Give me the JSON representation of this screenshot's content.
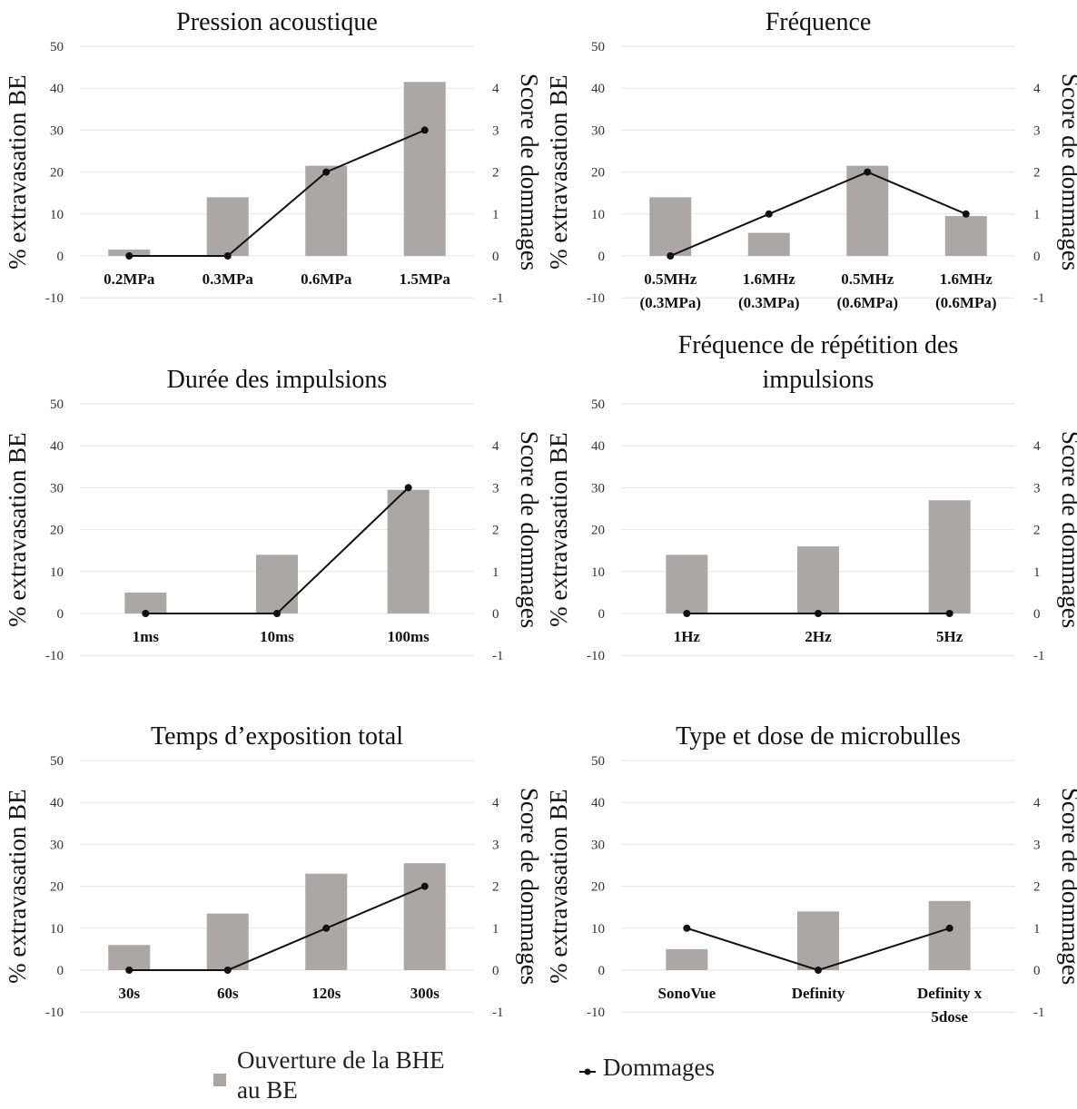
{
  "chart_data": [
    {
      "type": "bar",
      "title_lines": [
        "Pression acoustique"
      ],
      "ylabel": "% extravasation BE",
      "y2label": "Score de dommages",
      "ylim": [
        -10,
        50
      ],
      "yticks": [
        -10,
        0,
        10,
        20,
        30,
        40,
        50
      ],
      "y2lim": [
        -1,
        4
      ],
      "y2ticks": [
        -1,
        0,
        1,
        2,
        3,
        4
      ],
      "grid": true,
      "categories": [
        [
          "0.2MPa"
        ],
        [
          "0.3MPa"
        ],
        [
          "0.6MPa"
        ],
        [
          "1.5MPa"
        ]
      ],
      "series": [
        {
          "name": "Ouverture de la BHE au BE",
          "type": "bar",
          "axis": "left",
          "values": [
            1.5,
            14,
            21.5,
            41.5
          ]
        },
        {
          "name": "Dommages",
          "type": "line",
          "axis": "right",
          "values": [
            0,
            0,
            2,
            3
          ]
        }
      ]
    },
    {
      "type": "bar",
      "title_lines": [
        "Fréquence"
      ],
      "ylabel": "% extravasation BE",
      "y2label": "Score de dommages",
      "ylim": [
        -10,
        50
      ],
      "yticks": [
        -10,
        0,
        10,
        20,
        30,
        40,
        50
      ],
      "y2lim": [
        -1,
        4
      ],
      "y2ticks": [
        -1,
        0,
        1,
        2,
        3,
        4
      ],
      "grid": true,
      "categories": [
        [
          "0.5MHz",
          "(0.3MPa)"
        ],
        [
          "1.6MHz",
          "(0.3MPa)"
        ],
        [
          "0.5MHz",
          "(0.6MPa)"
        ],
        [
          "1.6MHz",
          "(0.6MPa)"
        ]
      ],
      "series": [
        {
          "name": "Ouverture de la BHE au BE",
          "type": "bar",
          "axis": "left",
          "values": [
            14,
            5.5,
            21.5,
            9.5
          ]
        },
        {
          "name": "Dommages",
          "type": "line",
          "axis": "right",
          "values": [
            0,
            1,
            2,
            1
          ]
        }
      ]
    },
    {
      "type": "bar",
      "title_lines": [
        "Durée des impulsions"
      ],
      "ylabel": "% extravasation BE",
      "y2label": "Score de dommages",
      "ylim": [
        -10,
        50
      ],
      "yticks": [
        -10,
        0,
        10,
        20,
        30,
        40,
        50
      ],
      "y2lim": [
        -1,
        4
      ],
      "y2ticks": [
        -1,
        0,
        1,
        2,
        3,
        4
      ],
      "grid": true,
      "categories": [
        [
          "1ms"
        ],
        [
          "10ms"
        ],
        [
          "100ms"
        ]
      ],
      "series": [
        {
          "name": "Ouverture de la BHE au BE",
          "type": "bar",
          "axis": "left",
          "values": [
            5,
            14,
            29.5
          ]
        },
        {
          "name": "Dommages",
          "type": "line",
          "axis": "right",
          "values": [
            0,
            0,
            3
          ]
        }
      ]
    },
    {
      "type": "bar",
      "title_lines": [
        "Fréquence de répétition des",
        "impulsions"
      ],
      "ylabel": "% extravasation BE",
      "y2label": "Score de dommages",
      "ylim": [
        -10,
        50
      ],
      "yticks": [
        -10,
        0,
        10,
        20,
        30,
        40,
        50
      ],
      "y2lim": [
        -1,
        4
      ],
      "y2ticks": [
        -1,
        0,
        1,
        2,
        3,
        4
      ],
      "grid": true,
      "categories": [
        [
          "1Hz"
        ],
        [
          "2Hz"
        ],
        [
          "5Hz"
        ]
      ],
      "series": [
        {
          "name": "Ouverture de la BHE au BE",
          "type": "bar",
          "axis": "left",
          "values": [
            14,
            16,
            27
          ]
        },
        {
          "name": "Dommages",
          "type": "line",
          "axis": "right",
          "values": [
            0,
            0,
            0
          ]
        }
      ]
    },
    {
      "type": "bar",
      "title_lines": [
        "Temps d’exposition total"
      ],
      "ylabel": "% extravasation BE",
      "y2label": "Score de dommages",
      "ylim": [
        -10,
        50
      ],
      "yticks": [
        -10,
        0,
        10,
        20,
        30,
        40,
        50
      ],
      "y2lim": [
        -1,
        4
      ],
      "y2ticks": [
        -1,
        0,
        1,
        2,
        3,
        4
      ],
      "grid": true,
      "categories": [
        [
          "30s"
        ],
        [
          "60s"
        ],
        [
          "120s"
        ],
        [
          "300s"
        ]
      ],
      "series": [
        {
          "name": "Ouverture de la BHE au BE",
          "type": "bar",
          "axis": "left",
          "values": [
            6,
            13.5,
            23,
            25.5
          ]
        },
        {
          "name": "Dommages",
          "type": "line",
          "axis": "right",
          "values": [
            0,
            0,
            1,
            2
          ]
        }
      ]
    },
    {
      "type": "bar",
      "title_lines": [
        "Type et dose de microbulles"
      ],
      "ylabel": "% extravasation BE",
      "y2label": "Score de dommages",
      "ylim": [
        -10,
        50
      ],
      "yticks": [
        -10,
        0,
        10,
        20,
        30,
        40,
        50
      ],
      "y2lim": [
        -1,
        4
      ],
      "y2ticks": [
        -1,
        0,
        1,
        2,
        3,
        4
      ],
      "grid": true,
      "categories": [
        [
          "SonoVue"
        ],
        [
          "Definity"
        ],
        [
          "Definity x",
          "5dose"
        ]
      ],
      "series": [
        {
          "name": "Ouverture de la BHE au BE",
          "type": "bar",
          "axis": "left",
          "values": [
            5,
            14,
            16.5
          ]
        },
        {
          "name": "Dommages",
          "type": "line",
          "axis": "right",
          "values": [
            1,
            0,
            1
          ]
        }
      ]
    }
  ],
  "legend": {
    "bar_label_line1": "Ouverture de la BHE",
    "bar_label_line2": "au BE",
    "line_label": "Dommages"
  },
  "colors": {
    "bar": "#aba7a6",
    "line": "#111111",
    "grid": "#e6e6e6",
    "tick_text": "#333333"
  }
}
